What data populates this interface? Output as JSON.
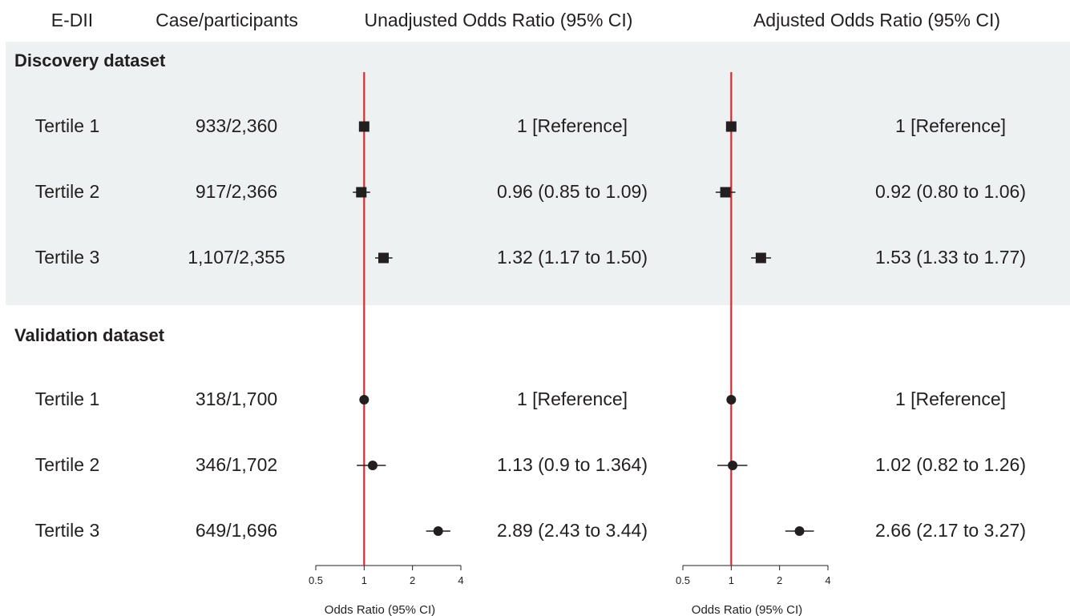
{
  "colors": {
    "band": "#eef1f2",
    "reference_line": "#e0262b",
    "ink": "#231f20"
  },
  "chart_data": {
    "type": "forest",
    "headers": {
      "group": "E-DII",
      "cases": "Case/participants",
      "unadjusted": "Unadjusted Odds Ratio (95% CI)",
      "adjusted": "Adjusted Odds Ratio (95% CI)"
    },
    "x_scale": "log",
    "xlim": [
      0.5,
      4
    ],
    "ticks": [
      0.5,
      1,
      2,
      4
    ],
    "tick_labels": [
      "0.5",
      "1",
      "2",
      "4"
    ],
    "reference_value": 1,
    "xlabel": "Odds Ratio (95% CI)",
    "sections": [
      {
        "name": "Discovery dataset",
        "marker": "square",
        "shaded": true,
        "rows": [
          {
            "label": "Tertile 1",
            "cases": "933/2,360",
            "unadjusted": {
              "text": "1 [Reference]",
              "or": 1,
              "low": 1,
              "high": 1
            },
            "adjusted": {
              "text": "1 [Reference]",
              "or": 1,
              "low": 1,
              "high": 1
            }
          },
          {
            "label": "Tertile 2",
            "cases": "917/2,366",
            "unadjusted": {
              "text": "0.96 (0.85 to 1.09)",
              "or": 0.96,
              "low": 0.85,
              "high": 1.09
            },
            "adjusted": {
              "text": "0.92 (0.80 to 1.06)",
              "or": 0.92,
              "low": 0.8,
              "high": 1.06
            }
          },
          {
            "label": "Tertile 3",
            "cases": "1,107/2,355",
            "unadjusted": {
              "text": "1.32 (1.17 to 1.50)",
              "or": 1.32,
              "low": 1.17,
              "high": 1.5
            },
            "adjusted": {
              "text": "1.53 (1.33 to 1.77)",
              "or": 1.53,
              "low": 1.33,
              "high": 1.77
            }
          }
        ]
      },
      {
        "name": "Validation dataset",
        "marker": "circle",
        "shaded": false,
        "rows": [
          {
            "label": "Tertile 1",
            "cases": "318/1,700",
            "unadjusted": {
              "text": "1 [Reference]",
              "or": 1,
              "low": 1,
              "high": 1
            },
            "adjusted": {
              "text": "1 [Reference]",
              "or": 1,
              "low": 1,
              "high": 1
            }
          },
          {
            "label": "Tertile 2",
            "cases": "346/1,702",
            "unadjusted": {
              "text": "1.13 (0.9 to 1.364)",
              "or": 1.13,
              "low": 0.9,
              "high": 1.364
            },
            "adjusted": {
              "text": "1.02 (0.82 to 1.26)",
              "or": 1.02,
              "low": 0.82,
              "high": 1.26
            }
          },
          {
            "label": "Tertile 3",
            "cases": "649/1,696",
            "unadjusted": {
              "text": "2.89 (2.43 to 3.44)",
              "or": 2.89,
              "low": 2.43,
              "high": 3.44
            },
            "adjusted": {
              "text": "2.66 (2.17 to 3.27)",
              "or": 2.66,
              "low": 2.17,
              "high": 3.27
            }
          }
        ]
      }
    ]
  }
}
